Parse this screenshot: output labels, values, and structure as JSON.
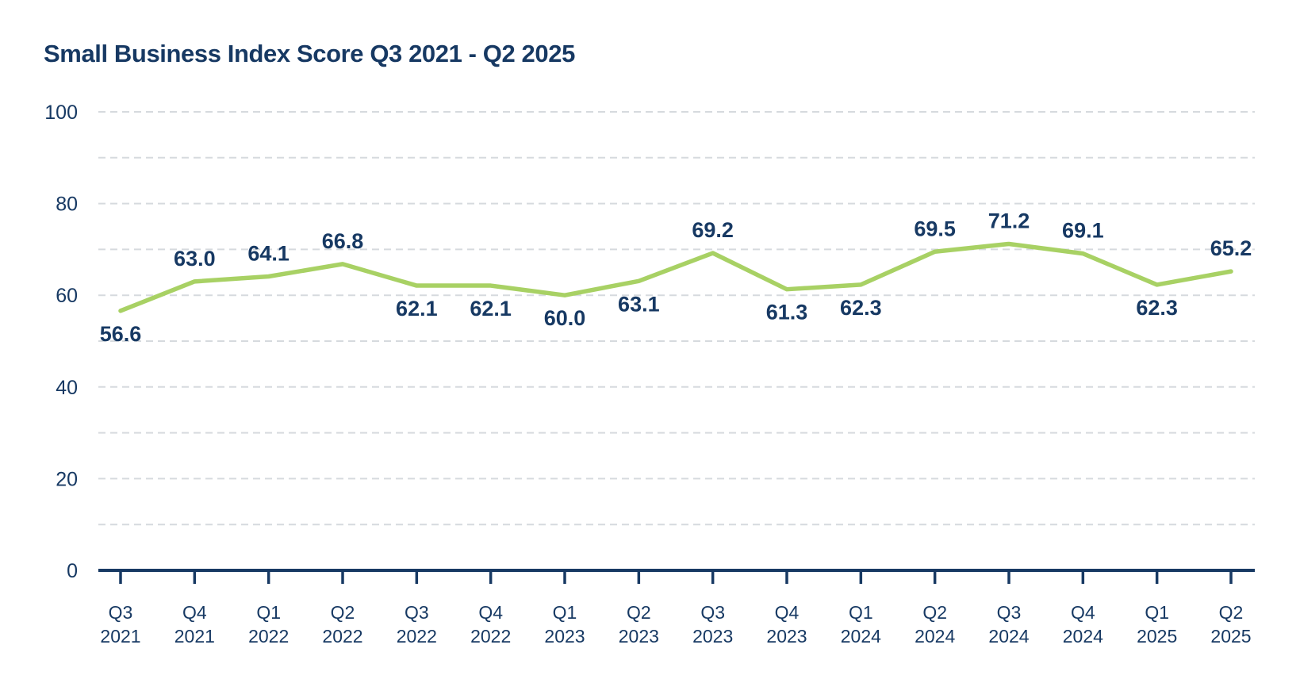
{
  "page": {
    "background": "#ffffff"
  },
  "colors": {
    "navy": "#173963",
    "line_green": "#a8d164",
    "gridline": "#d6dade",
    "axis": "#173963"
  },
  "chart_data": {
    "type": "line",
    "title": "Small Business Index Score Q3 2021 - Q2 2025",
    "series_name": "Small Business Index Score",
    "xlabel": "",
    "ylabel": "",
    "ylim": [
      0,
      100
    ],
    "ytick_labels": [
      "0",
      "20",
      "40",
      "60",
      "80",
      "100"
    ],
    "yticks": [
      0,
      20,
      40,
      60,
      80,
      100
    ],
    "grid_interval": 10,
    "grid_style": "dashed-horizontal",
    "legend": "none",
    "line_color": "#a8d164",
    "value_labels_shown": true,
    "points": [
      {
        "quarter": "Q3",
        "year": "2021",
        "value": 56.6,
        "display": "56.6",
        "label_position": "below"
      },
      {
        "quarter": "Q4",
        "year": "2021",
        "value": 63.0,
        "display": "63.0",
        "label_position": "above"
      },
      {
        "quarter": "Q1",
        "year": "2022",
        "value": 64.1,
        "display": "64.1",
        "label_position": "above"
      },
      {
        "quarter": "Q2",
        "year": "2022",
        "value": 66.8,
        "display": "66.8",
        "label_position": "above"
      },
      {
        "quarter": "Q3",
        "year": "2022",
        "value": 62.1,
        "display": "62.1",
        "label_position": "below"
      },
      {
        "quarter": "Q4",
        "year": "2022",
        "value": 62.1,
        "display": "62.1",
        "label_position": "below"
      },
      {
        "quarter": "Q1",
        "year": "2023",
        "value": 60.0,
        "display": "60.0",
        "label_position": "below"
      },
      {
        "quarter": "Q2",
        "year": "2023",
        "value": 63.1,
        "display": "63.1",
        "label_position": "below"
      },
      {
        "quarter": "Q3",
        "year": "2023",
        "value": 69.2,
        "display": "69.2",
        "label_position": "above"
      },
      {
        "quarter": "Q4",
        "year": "2023",
        "value": 61.3,
        "display": "61.3",
        "label_position": "below"
      },
      {
        "quarter": "Q1",
        "year": "2024",
        "value": 62.3,
        "display": "62.3",
        "label_position": "below"
      },
      {
        "quarter": "Q2",
        "year": "2024",
        "value": 69.5,
        "display": "69.5",
        "label_position": "above"
      },
      {
        "quarter": "Q3",
        "year": "2024",
        "value": 71.2,
        "display": "71.2",
        "label_position": "above"
      },
      {
        "quarter": "Q4",
        "year": "2024",
        "value": 69.1,
        "display": "69.1",
        "label_position": "above"
      },
      {
        "quarter": "Q1",
        "year": "2025",
        "value": 62.3,
        "display": "62.3",
        "label_position": "below"
      },
      {
        "quarter": "Q2",
        "year": "2025",
        "value": 65.2,
        "display": "65.2",
        "label_position": "above"
      }
    ]
  }
}
